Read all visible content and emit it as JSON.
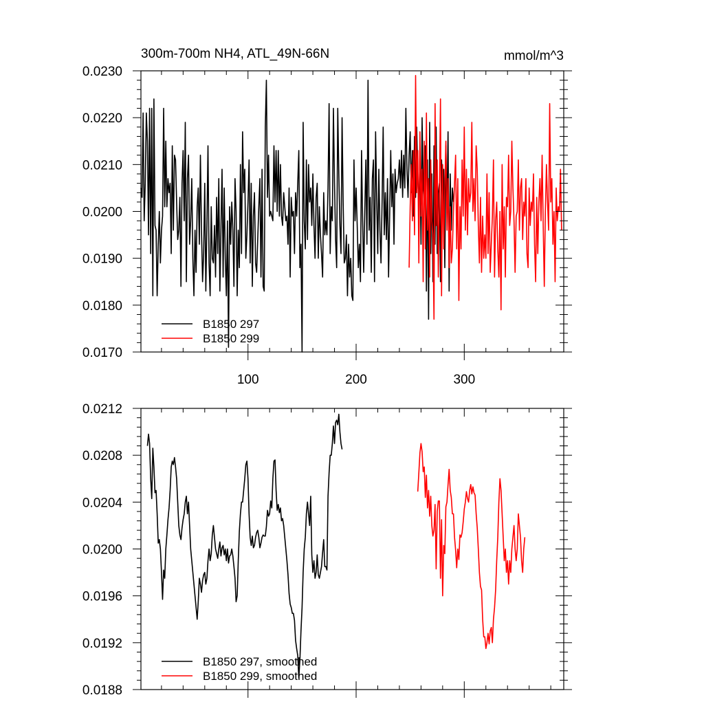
{
  "chart_data": [
    {
      "type": "line",
      "title": "300m-700m NH4, ATL_49N-66N",
      "units": "mmol/m^3",
      "xlim": [
        1,
        392
      ],
      "ylim": [
        0.017,
        0.023
      ],
      "x_tick_labels": [
        "100",
        "200",
        "300"
      ],
      "x_ticks": [
        100,
        200,
        300
      ],
      "y_ticks": [
        0.017,
        0.018,
        0.019,
        0.02,
        0.021,
        0.022,
        0.023
      ],
      "y_tick_labels": [
        "0.0170",
        "0.0180",
        "0.0190",
        "0.0200",
        "0.0210",
        "0.0220",
        "0.0230"
      ],
      "legend_position": "bottom-left",
      "series": [
        {
          "name": "B1850 297",
          "color": "#000000",
          "x_start": 1,
          "values": [
            0.0205,
            0.0203,
            0.0221,
            0.0198,
            0.0206,
            0.0221,
            0.0215,
            0.0195,
            0.0222,
            0.0191,
            0.0222,
            0.0182,
            0.0224,
            0.0197,
            0.0196,
            0.0182,
            0.0193,
            0.02,
            0.0189,
            0.0196,
            0.0199,
            0.0222,
            0.0201,
            0.0215,
            0.0201,
            0.0207,
            0.0204,
            0.0206,
            0.0191,
            0.0214,
            0.0196,
            0.0212,
            0.0211,
            0.0202,
            0.0194,
            0.0196,
            0.0203,
            0.0184,
            0.0206,
            0.0213,
            0.0198,
            0.0219,
            0.0185,
            0.0207,
            0.0212,
            0.0193,
            0.0198,
            0.0207,
            0.019,
            0.0182,
            0.0196,
            0.0187,
            0.0201,
            0.0205,
            0.0193,
            0.0212,
            0.0196,
            0.0185,
            0.0191,
            0.0206,
            0.0183,
            0.0197,
            0.0214,
            0.0189,
            0.0182,
            0.0201,
            0.019,
            0.0189,
            0.0197,
            0.0186,
            0.0203,
            0.0191,
            0.0207,
            0.0183,
            0.0196,
            0.0209,
            0.0186,
            0.0205,
            0.019,
            0.0182,
            0.0198,
            0.0171,
            0.0201,
            0.0193,
            0.0202,
            0.0196,
            0.0184,
            0.0207,
            0.02,
            0.0182,
            0.0196,
            0.0188,
            0.021,
            0.0191,
            0.0217,
            0.0204,
            0.0209,
            0.019,
            0.0195,
            0.0202,
            0.0211,
            0.0189,
            0.0206,
            0.0184,
            0.0199,
            0.0204,
            0.0189,
            0.0187,
            0.0194,
            0.0201,
            0.0207,
            0.0186,
            0.0209,
            0.0184,
            0.0183,
            0.0218,
            0.0228,
            0.0203,
            0.0212,
            0.0199,
            0.02,
            0.0199,
            0.0198,
            0.0214,
            0.0202,
            0.0213,
            0.02,
            0.0213,
            0.0199,
            0.021,
            0.0199,
            0.0197,
            0.0204,
            0.0201,
            0.0198,
            0.0199,
            0.0193,
            0.0205,
            0.0186,
            0.0203,
            0.0199,
            0.02,
            0.0191,
            0.0204,
            0.0199,
            0.0206,
            0.0213,
            0.0188,
            0.0193,
            0.017,
            0.0219,
            0.0198,
            0.0192,
            0.0211,
            0.0194,
            0.021,
            0.0202,
            0.0205,
            0.0197,
            0.0208,
            0.0197,
            0.019,
            0.0203,
            0.0206,
            0.019,
            0.0201,
            0.0195,
            0.0191,
            0.0186,
            0.0204,
            0.0195,
            0.0198,
            0.0195,
            0.0205,
            0.0223,
            0.0191,
            0.0201,
            0.0198,
            0.0222,
            0.0206,
            0.0194,
            0.0188,
            0.0222,
            0.0208,
            0.0197,
            0.0191,
            0.022,
            0.0202,
            0.0189,
            0.019,
            0.0195,
            0.0182,
            0.0193,
            0.0186,
            0.019,
            0.0182,
            0.0181,
            0.0211,
            0.0198,
            0.0205,
            0.0197,
            0.0188,
            0.0193,
            0.0185,
            0.0213,
            0.0198,
            0.0187,
            0.02,
            0.0211,
            0.0193,
            0.0228,
            0.0196,
            0.0203,
            0.0187,
            0.0207,
            0.0211,
            0.0185,
            0.0217,
            0.0203,
            0.0191,
            0.0209,
            0.0196,
            0.0189,
            0.0202,
            0.0218,
            0.0195,
            0.0204,
            0.0194,
            0.0207,
            0.0186,
            0.0199,
            0.0213,
            0.0201,
            0.0208,
            0.0193,
            0.0209,
            0.0204,
            0.0206,
            0.0207,
            0.0211,
            0.0205,
            0.0213,
            0.0203,
            0.0212,
            0.0205,
            0.0222,
            0.0209,
            0.0203,
            0.0212,
            0.0217,
            0.0204,
            0.0213,
            0.0199,
            0.0216,
            0.0203,
            0.0218,
            0.0207,
            0.0201,
            0.0212,
            0.0193,
            0.022,
            0.0205,
            0.0202,
            0.0214,
            0.0183,
            0.0211,
            0.0177,
            0.0219,
            0.0191,
            0.0208,
            0.0185,
            0.0214,
            0.0193,
            0.0218,
            0.0191,
            0.0204,
            0.0206,
            0.0185,
            0.0211,
            0.0203,
            0.0209,
            0.0188,
            0.0214,
            0.02,
            0.0217,
            0.0183,
            0.0208,
            0.0196,
            0.0205,
            0.0202
          ]
        },
        {
          "name": "B1850 299",
          "color": "#ff0000",
          "x_start": 249,
          "values": [
            0.0188,
            0.0201,
            0.021,
            0.0198,
            0.0213,
            0.0195,
            0.0229,
            0.0204,
            0.0213,
            0.0189,
            0.0217,
            0.0199,
            0.0209,
            0.0185,
            0.0215,
            0.0192,
            0.0221,
            0.0196,
            0.0207,
            0.0186,
            0.0211,
            0.0198,
            0.0195,
            0.0177,
            0.0223,
            0.0197,
            0.0211,
            0.0186,
            0.0204,
            0.0224,
            0.0182,
            0.021,
            0.0192,
            0.0205,
            0.0215,
            0.0196,
            0.0207,
            0.0188,
            0.0201,
            0.0189,
            0.0192,
            0.02,
            0.0206,
            0.0212,
            0.0192,
            0.0207,
            0.0181,
            0.0201,
            0.0192,
            0.0211,
            0.0199,
            0.0218,
            0.0196,
            0.0209,
            0.0195,
            0.0207,
            0.0202,
            0.0204,
            0.0219,
            0.02,
            0.0207,
            0.0198,
            0.0214,
            0.0209,
            0.0197,
            0.0189,
            0.0203,
            0.0187,
            0.0199,
            0.019,
            0.0195,
            0.019,
            0.0208,
            0.0191,
            0.0204,
            0.0187,
            0.0193,
            0.0199,
            0.0211,
            0.0186,
            0.0198,
            0.0202,
            0.0192,
            0.0186,
            0.02,
            0.0179,
            0.021,
            0.0192,
            0.0201,
            0.0186,
            0.0203,
            0.0201,
            0.0212,
            0.0197,
            0.02,
            0.0215,
            0.0205,
            0.0198,
            0.0187,
            0.0199,
            0.02,
            0.0211,
            0.0196,
            0.0205,
            0.0207,
            0.0194,
            0.0202,
            0.0199,
            0.0207,
            0.0191,
            0.0188,
            0.0205,
            0.0197,
            0.0202,
            0.02,
            0.0208,
            0.0193,
            0.0185,
            0.0203,
            0.0191,
            0.0202,
            0.0207,
            0.0198,
            0.0212,
            0.0197,
            0.0184,
            0.02,
            0.021,
            0.0202,
            0.0196,
            0.0223,
            0.0202,
            0.0207,
            0.0193,
            0.02,
            0.0185,
            0.0205,
            0.0198,
            0.0201,
            0.02,
            0.0209,
            0.0196
          ]
        }
      ]
    },
    {
      "type": "line",
      "xlim": [
        1,
        392
      ],
      "ylim": [
        0.0188,
        0.0212
      ],
      "x_ticks": [
        100,
        200,
        300
      ],
      "y_ticks": [
        0.0188,
        0.0192,
        0.0196,
        0.02,
        0.0204,
        0.0208,
        0.0212
      ],
      "y_tick_labels": [
        "0.0188",
        "0.0192",
        "0.0196",
        "0.0200",
        "0.0204",
        "0.0208",
        "0.0212"
      ],
      "legend_position": "bottom-left",
      "series": [
        {
          "name": "B1850 297, smoothed",
          "color": "#000000",
          "x_start": 7,
          "values": [
            0.02088,
            0.02098,
            0.0209,
            0.0206,
            0.02043,
            0.02086,
            0.0207,
            0.02048,
            0.0205,
            0.0203,
            0.02005,
            0.02008,
            0.02,
            0.0198,
            0.01957,
            0.01982,
            0.01975,
            0.02,
            0.02012,
            0.02025,
            0.02035,
            0.0205,
            0.0207,
            0.02075,
            0.02072,
            0.02078,
            0.0207,
            0.0206,
            0.0204,
            0.0202,
            0.02012,
            0.02008,
            0.02018,
            0.02025,
            0.0203,
            0.0204,
            0.02045,
            0.0203,
            0.0204,
            0.0202,
            0.02,
            0.0199,
            0.0198,
            0.0197,
            0.0196,
            0.0195,
            0.0194,
            0.01955,
            0.01975,
            0.0197,
            0.01963,
            0.01973,
            0.01978,
            0.0198,
            0.0197,
            0.01975,
            0.0199,
            0.02,
            0.0199,
            0.01996,
            0.02012,
            0.0202,
            0.0201,
            0.02,
            0.01996,
            0.01992,
            0.02,
            0.02006,
            0.01994,
            0.02001,
            0.02003,
            0.01995,
            0.02,
            0.0199,
            0.02,
            0.01988,
            0.01994,
            0.01995,
            0.02,
            0.01994,
            0.01985,
            0.01975,
            0.01955,
            0.0196,
            0.0199,
            0.02015,
            0.0203,
            0.0204,
            0.0204,
            0.0205,
            0.0206,
            0.02072,
            0.02075,
            0.0206,
            0.0203,
            0.0201,
            0.02003,
            0.02011,
            0.02001,
            0.02003,
            0.0201,
            0.02014,
            0.02016,
            0.0201,
            0.02001,
            0.02005,
            0.0201,
            0.02012,
            0.02011,
            0.02011,
            0.02019,
            0.02033,
            0.02028,
            0.0203,
            0.02041,
            0.02035,
            0.0206,
            0.02075,
            0.02076,
            0.0205,
            0.02033,
            0.02038,
            0.02031,
            0.02035,
            0.02024,
            0.02026,
            0.0202,
            0.0201,
            0.02,
            0.0199,
            0.01978,
            0.01962,
            0.01953,
            0.0195,
            0.01945,
            0.01945,
            0.01939,
            0.01922,
            0.01915,
            0.01909,
            0.0189,
            0.01905,
            0.0193,
            0.0195,
            0.0198,
            0.02,
            0.0201,
            0.0203,
            0.0204,
            0.0203,
            0.0202,
            0.02045,
            0.01995,
            0.0198,
            0.0199,
            0.01975,
            0.0198,
            0.01995,
            0.01978,
            0.01975,
            0.0198,
            0.01985,
            0.01997,
            0.02008,
            0.01985,
            0.01985,
            0.01982,
            0.02045,
            0.02065,
            0.0208,
            0.0208,
            0.0209,
            0.02105,
            0.0209,
            0.02108,
            0.0211,
            0.02106,
            0.02115,
            0.021,
            0.0209,
            0.02085
          ]
        },
        {
          "name": "B1850 299, smoothed",
          "color": "#ff0000",
          "x_start": 257,
          "values": [
            0.02049,
            0.02065,
            0.02082,
            0.0209,
            0.02083,
            0.02066,
            0.0207,
            0.02044,
            0.02063,
            0.02035,
            0.0205,
            0.02028,
            0.02045,
            0.0202,
            0.02011,
            0.02016,
            0.02038,
            0.01983,
            0.02032,
            0.02041,
            0.02041,
            0.01975,
            0.02025,
            0.0196,
            0.02003,
            0.01996,
            0.02036,
            0.0204,
            0.02055,
            0.02068,
            0.0205,
            0.02044,
            0.0203,
            0.0203,
            0.0201,
            0.01999,
            0.01984,
            0.02,
            0.01991,
            0.02012,
            0.0201,
            0.02014,
            0.02023,
            0.02034,
            0.0204,
            0.02049,
            0.02043,
            0.0204,
            0.0205,
            0.02055,
            0.02047,
            0.02053,
            0.02048,
            0.02046,
            0.0203,
            0.02018,
            0.02,
            0.0198,
            0.01968,
            0.01965,
            0.0194,
            0.01925,
            0.01925,
            0.01915,
            0.0192,
            0.01928,
            0.01919,
            0.0193,
            0.01933,
            0.0192,
            0.0194,
            0.0195,
            0.01965,
            0.0199,
            0.0201,
            0.0204,
            0.0206,
            0.0205,
            0.0203,
            0.0201,
            0.0199,
            0.02,
            0.0198,
            0.0199,
            0.0197,
            0.0199,
            0.0198,
            0.02,
            0.0201,
            0.0202,
            0.02,
            0.0199,
            0.02,
            0.0203,
            0.0202,
            0.0201,
            0.0199,
            0.0198,
            0.02,
            0.0201
          ]
        }
      ]
    }
  ]
}
